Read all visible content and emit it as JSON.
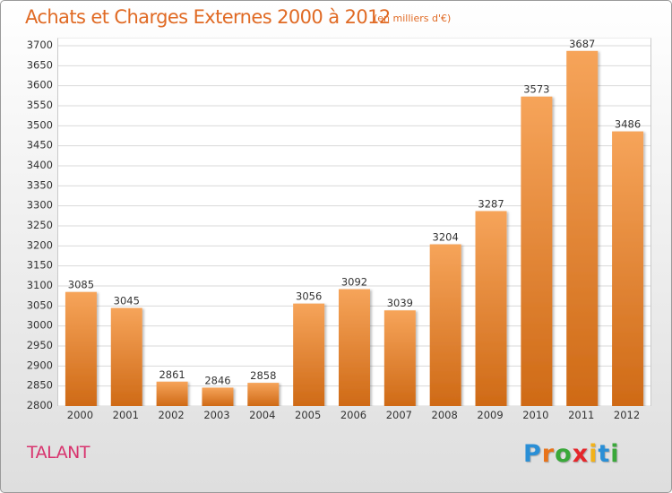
{
  "header": {
    "title": "Achats et Charges Externes 2000 à 2012",
    "unit": "(en milliers d'€)"
  },
  "footer": {
    "city": "TALANT",
    "logo": [
      "P",
      "r",
      "o",
      "x",
      "i",
      "t",
      "i"
    ]
  },
  "colors": {
    "bar_top": "#f6a45a",
    "bar_bottom": "#cf6a16",
    "title": "#e06a24",
    "city": "#d8346e"
  },
  "chart_data": {
    "type": "bar",
    "title": "Achats et Charges Externes 2000 à 2012",
    "subtitle": "(en milliers d'€)",
    "xlabel": "",
    "ylabel": "",
    "categories": [
      "2000",
      "2001",
      "2002",
      "2003",
      "2004",
      "2005",
      "2006",
      "2007",
      "2008",
      "2009",
      "2010",
      "2011",
      "2012"
    ],
    "values": [
      3085,
      3045,
      2861,
      2846,
      2858,
      3056,
      3092,
      3039,
      3204,
      3287,
      3573,
      3687,
      3486
    ],
    "ylim": [
      2800,
      3700
    ],
    "yticks": [
      2800,
      2850,
      2900,
      2950,
      3000,
      3050,
      3100,
      3150,
      3200,
      3250,
      3300,
      3350,
      3400,
      3450,
      3500,
      3550,
      3600,
      3650,
      3700
    ],
    "grid": true,
    "legend": "none"
  }
}
